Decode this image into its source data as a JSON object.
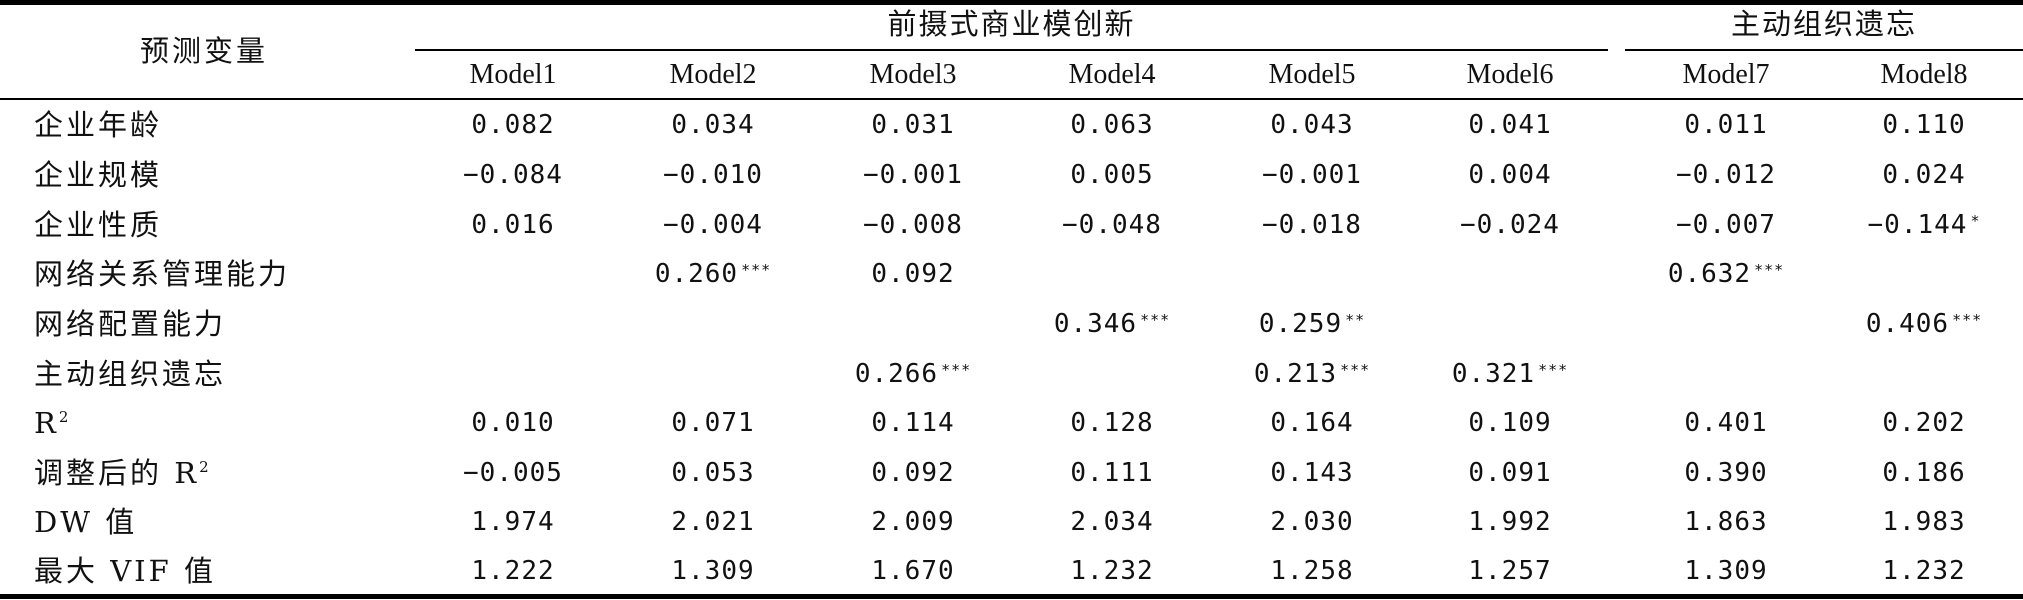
{
  "table": {
    "stub_header": "预测变量",
    "groups": [
      {
        "label": "前摄式商业模创新"
      },
      {
        "label": "主动组织遗忘"
      }
    ],
    "columns": [
      "Model1",
      "Model2",
      "Model3",
      "Model4",
      "Model5",
      "Model6",
      "Model7",
      "Model8"
    ],
    "rows": [
      {
        "label": "企业年龄",
        "cells": [
          {
            "v": "0.082",
            "s": ""
          },
          {
            "v": "0.034",
            "s": ""
          },
          {
            "v": "0.031",
            "s": ""
          },
          {
            "v": "0.063",
            "s": ""
          },
          {
            "v": "0.043",
            "s": ""
          },
          {
            "v": "0.041",
            "s": ""
          },
          {
            "v": "0.011",
            "s": ""
          },
          {
            "v": "0.110",
            "s": ""
          }
        ]
      },
      {
        "label": "企业规模",
        "cells": [
          {
            "v": "−0.084",
            "s": ""
          },
          {
            "v": "−0.010",
            "s": ""
          },
          {
            "v": "−0.001",
            "s": ""
          },
          {
            "v": "0.005",
            "s": ""
          },
          {
            "v": "−0.001",
            "s": ""
          },
          {
            "v": "0.004",
            "s": ""
          },
          {
            "v": "−0.012",
            "s": ""
          },
          {
            "v": "0.024",
            "s": ""
          }
        ]
      },
      {
        "label": "企业性质",
        "cells": [
          {
            "v": "0.016",
            "s": ""
          },
          {
            "v": "−0.004",
            "s": ""
          },
          {
            "v": "−0.008",
            "s": ""
          },
          {
            "v": "−0.048",
            "s": ""
          },
          {
            "v": "−0.018",
            "s": ""
          },
          {
            "v": "−0.024",
            "s": ""
          },
          {
            "v": "−0.007",
            "s": ""
          },
          {
            "v": "−0.144",
            "s": "*"
          }
        ]
      },
      {
        "label": "网络关系管理能力",
        "cells": [
          {
            "v": "",
            "s": ""
          },
          {
            "v": "0.260",
            "s": "***"
          },
          {
            "v": "0.092",
            "s": ""
          },
          {
            "v": "",
            "s": ""
          },
          {
            "v": "",
            "s": ""
          },
          {
            "v": "",
            "s": ""
          },
          {
            "v": "0.632",
            "s": "***"
          },
          {
            "v": "",
            "s": ""
          }
        ]
      },
      {
        "label": "网络配置能力",
        "cells": [
          {
            "v": "",
            "s": ""
          },
          {
            "v": "",
            "s": ""
          },
          {
            "v": "",
            "s": ""
          },
          {
            "v": "0.346",
            "s": "***"
          },
          {
            "v": "0.259",
            "s": "**"
          },
          {
            "v": "",
            "s": ""
          },
          {
            "v": "",
            "s": ""
          },
          {
            "v": "0.406",
            "s": "***"
          }
        ]
      },
      {
        "label": "主动组织遗忘",
        "cells": [
          {
            "v": "",
            "s": ""
          },
          {
            "v": "",
            "s": ""
          },
          {
            "v": "0.266",
            "s": "***"
          },
          {
            "v": "",
            "s": ""
          },
          {
            "v": "0.213",
            "s": "***"
          },
          {
            "v": "0.321",
            "s": "***"
          },
          {
            "v": "",
            "s": ""
          },
          {
            "v": "",
            "s": ""
          }
        ]
      },
      {
        "label": "R",
        "label_sup": "2",
        "cells": [
          {
            "v": "0.010",
            "s": ""
          },
          {
            "v": "0.071",
            "s": ""
          },
          {
            "v": "0.114",
            "s": ""
          },
          {
            "v": "0.128",
            "s": ""
          },
          {
            "v": "0.164",
            "s": ""
          },
          {
            "v": "0.109",
            "s": ""
          },
          {
            "v": "0.401",
            "s": ""
          },
          {
            "v": "0.202",
            "s": ""
          }
        ]
      },
      {
        "label": "调整后的 R",
        "label_sup": "2",
        "cells": [
          {
            "v": "−0.005",
            "s": ""
          },
          {
            "v": "0.053",
            "s": ""
          },
          {
            "v": "0.092",
            "s": ""
          },
          {
            "v": "0.111",
            "s": ""
          },
          {
            "v": "0.143",
            "s": ""
          },
          {
            "v": "0.091",
            "s": ""
          },
          {
            "v": "0.390",
            "s": ""
          },
          {
            "v": "0.186",
            "s": ""
          }
        ]
      },
      {
        "label": "DW 值",
        "cells": [
          {
            "v": "1.974",
            "s": ""
          },
          {
            "v": "2.021",
            "s": ""
          },
          {
            "v": "2.009",
            "s": ""
          },
          {
            "v": "2.034",
            "s": ""
          },
          {
            "v": "2.030",
            "s": ""
          },
          {
            "v": "1.992",
            "s": ""
          },
          {
            "v": "1.863",
            "s": ""
          },
          {
            "v": "1.983",
            "s": ""
          }
        ]
      },
      {
        "label": "最大 VIF 值",
        "cells": [
          {
            "v": "1.222",
            "s": ""
          },
          {
            "v": "1.309",
            "s": ""
          },
          {
            "v": "1.670",
            "s": ""
          },
          {
            "v": "1.232",
            "s": ""
          },
          {
            "v": "1.258",
            "s": ""
          },
          {
            "v": "1.257",
            "s": ""
          },
          {
            "v": "1.309",
            "s": ""
          },
          {
            "v": "1.232",
            "s": ""
          }
        ]
      }
    ]
  }
}
